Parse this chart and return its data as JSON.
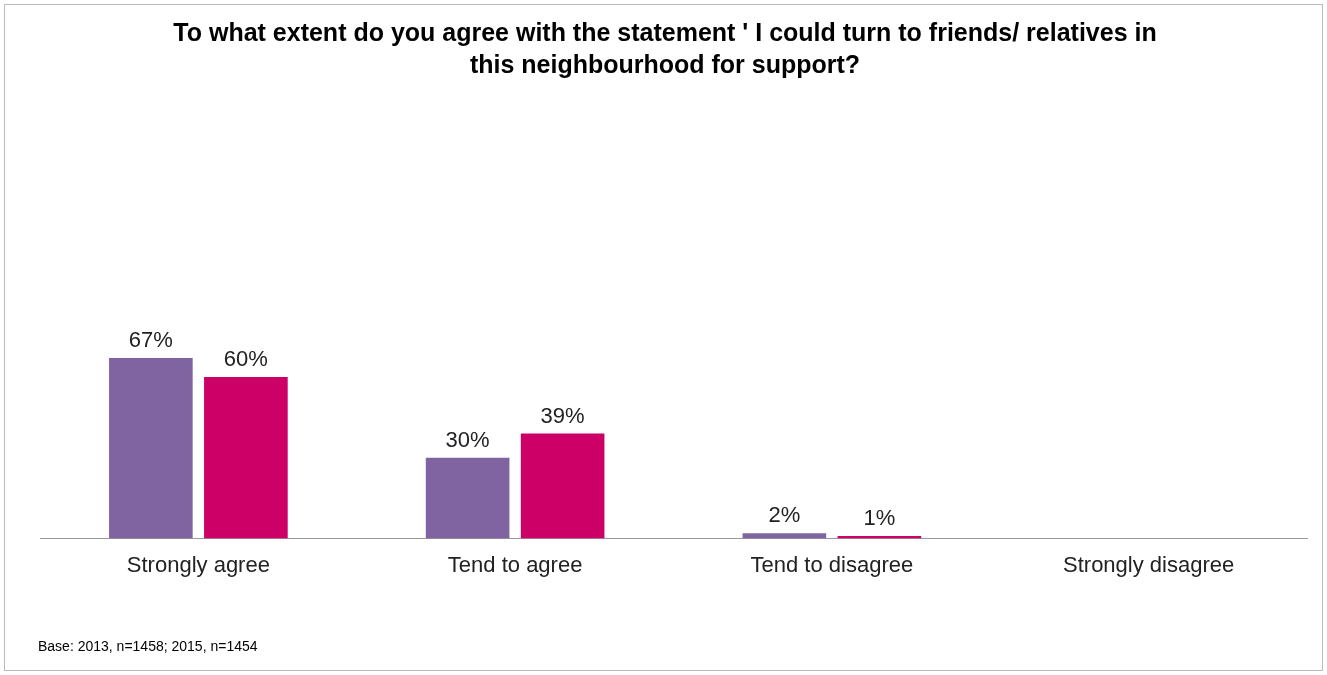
{
  "chart_data": {
    "type": "bar",
    "title": "To what extent do you agree with the statement ' I could turn to friends/ relatives in this neighbourhood for support?",
    "categories": [
      "Strongly agree",
      "Tend to agree",
      "Tend to disagree",
      "Strongly disagree"
    ],
    "series": [
      {
        "color": "#8064a2",
        "values": [
          67,
          30,
          2,
          null
        ],
        "value_labels": [
          "67%",
          "30%",
          "2%",
          null
        ]
      },
      {
        "color": "#cc0066",
        "values": [
          60,
          39,
          1,
          null
        ],
        "value_labels": [
          "60%",
          "39%",
          "1%",
          null
        ]
      }
    ],
    "grid": false,
    "legend": false,
    "annotations": [
      "Base: 2013, n=1458; 2015, n=1454"
    ]
  }
}
